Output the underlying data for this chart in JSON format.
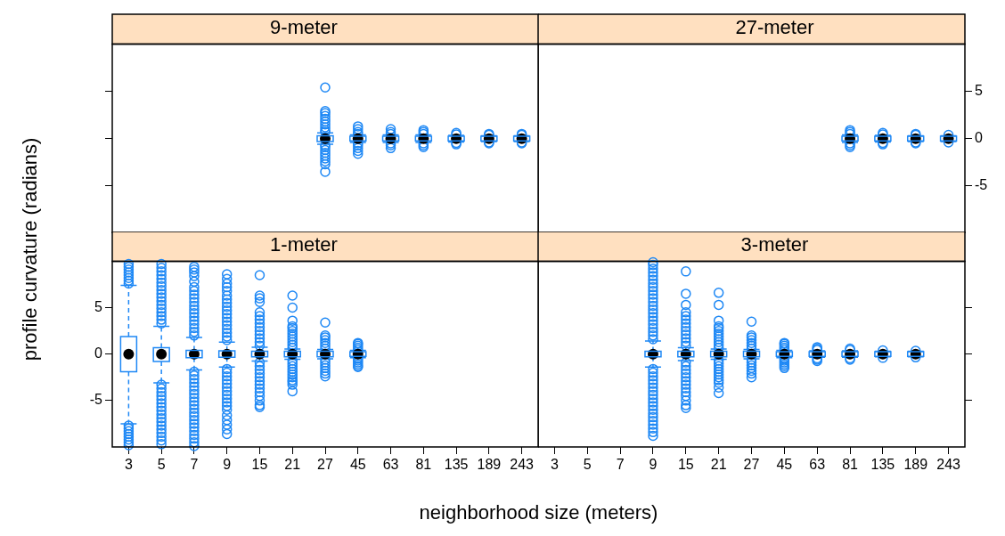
{
  "chart_data": [
    {
      "type": "box",
      "title": "9-meter",
      "categories": [
        "3",
        "5",
        "7",
        "9",
        "15",
        "21",
        "27",
        "45",
        "63",
        "81",
        "135",
        "189",
        "243"
      ],
      "ylim": [
        -10,
        10
      ],
      "yticks": [
        -5,
        0,
        5
      ],
      "grid": false,
      "legend": false,
      "tick_labels": false,
      "series": [
        {
          "color": "#1e88f5",
          "boxes": [
            null,
            null,
            null,
            null,
            null,
            null,
            {
              "low": -0.6,
              "q1": -0.3,
              "median": 0,
              "q3": 0.3,
              "high": 0.6,
              "outliers": [
                0.7,
                0.9,
                1.2,
                1.5,
                1.8,
                2.1,
                2.4,
                2.7,
                2.9,
                5.4,
                -0.7,
                -0.9,
                -1.2,
                -1.5,
                -1.8,
                -2.1,
                -2.4,
                -2.7,
                -3.5
              ]
            },
            {
              "low": -0.4,
              "q1": -0.25,
              "median": 0,
              "q3": 0.25,
              "high": 0.4,
              "outliers": [
                0.5,
                0.7,
                1.0,
                1.3,
                -0.5,
                -0.7,
                -1.0,
                -1.3,
                -1.6
              ]
            },
            {
              "low": -0.4,
              "q1": -0.25,
              "median": 0,
              "q3": 0.25,
              "high": 0.4,
              "outliers": [
                0.5,
                0.7,
                1.0,
                -0.5,
                -0.7,
                -1.0
              ]
            },
            {
              "low": -0.4,
              "q1": -0.25,
              "median": 0,
              "q3": 0.25,
              "high": 0.4,
              "outliers": [
                0.5,
                0.7,
                0.9,
                -0.5,
                -0.7,
                -0.9
              ]
            },
            {
              "low": -0.35,
              "q1": -0.25,
              "median": 0,
              "q3": 0.25,
              "high": 0.35,
              "outliers": [
                0.45,
                0.6,
                -0.45,
                -0.6
              ]
            },
            {
              "low": -0.3,
              "q1": -0.25,
              "median": 0,
              "q3": 0.25,
              "high": 0.3,
              "outliers": [
                0.4,
                0.5,
                -0.4,
                -0.5
              ]
            },
            {
              "low": -0.3,
              "q1": -0.25,
              "median": 0,
              "q3": 0.25,
              "high": 0.3,
              "outliers": [
                0.4,
                0.5,
                -0.4,
                -0.5
              ]
            }
          ]
        }
      ]
    },
    {
      "type": "box",
      "title": "27-meter",
      "categories": [
        "3",
        "5",
        "7",
        "9",
        "15",
        "21",
        "27",
        "45",
        "63",
        "81",
        "135",
        "189",
        "243"
      ],
      "ylim": [
        -10,
        10
      ],
      "yticks": [
        -5,
        0,
        5
      ],
      "grid": false,
      "legend": false,
      "tick_labels": "y",
      "series": [
        {
          "color": "#1e88f5",
          "boxes": [
            null,
            null,
            null,
            null,
            null,
            null,
            null,
            null,
            null,
            {
              "low": -0.4,
              "q1": -0.25,
              "median": 0,
              "q3": 0.25,
              "high": 0.4,
              "outliers": [
                0.5,
                0.7,
                0.9,
                -0.5,
                -0.7,
                -0.9
              ]
            },
            {
              "low": -0.35,
              "q1": -0.25,
              "median": 0,
              "q3": 0.25,
              "high": 0.35,
              "outliers": [
                0.45,
                0.6,
                -0.45,
                -0.6
              ]
            },
            {
              "low": -0.3,
              "q1": -0.25,
              "median": 0,
              "q3": 0.25,
              "high": 0.3,
              "outliers": [
                0.4,
                0.5,
                -0.4,
                -0.5
              ]
            },
            {
              "low": -0.3,
              "q1": -0.25,
              "median": 0,
              "q3": 0.25,
              "high": 0.3,
              "outliers": [
                0.4,
                -0.4
              ]
            }
          ]
        }
      ]
    },
    {
      "type": "box",
      "title": "1-meter",
      "xlabel": "neighborhood size (meters)",
      "ylabel": "profile curvature (radians)",
      "categories": [
        "3",
        "5",
        "7",
        "9",
        "15",
        "21",
        "27",
        "45",
        "63",
        "81",
        "135",
        "189",
        "243"
      ],
      "ylim": [
        -10,
        10
      ],
      "yticks": [
        -5,
        0,
        5
      ],
      "grid": false,
      "legend": false,
      "series": [
        {
          "color": "#1e88f5",
          "boxes": [
            {
              "low": -7.5,
              "q1": -1.9,
              "median": 0,
              "q3": 1.9,
              "high": 7.4,
              "outliers": [
                7.6,
                7.9,
                8.2,
                8.5,
                8.8,
                9.1,
                9.4,
                9.7,
                -7.7,
                -8.0,
                -8.3,
                -8.6,
                -8.9,
                -9.2,
                -9.5,
                -9.8
              ]
            },
            {
              "low": -3.1,
              "q1": -0.8,
              "median": 0,
              "q3": 0.7,
              "high": 3.0,
              "outliers": [
                3.3,
                3.7,
                4.1,
                4.5,
                4.9,
                5.3,
                5.7,
                6.1,
                6.5,
                6.9,
                7.3,
                7.7,
                8.1,
                8.5,
                8.9,
                9.3,
                9.7,
                -3.3,
                -3.7,
                -4.1,
                -4.5,
                -4.9,
                -5.3,
                -5.7,
                -6.1,
                -6.5,
                -6.9,
                -7.3,
                -7.7,
                -8.1,
                -8.5,
                -8.9,
                -9.3,
                -9.7
              ]
            },
            {
              "low": -1.7,
              "q1": -0.4,
              "median": 0,
              "q3": 0.4,
              "high": 1.8,
              "outliers": [
                2.0,
                2.4,
                2.8,
                3.2,
                3.6,
                4.0,
                4.4,
                4.8,
                5.2,
                5.6,
                6.0,
                6.4,
                6.8,
                7.2,
                7.8,
                8.4,
                8.8,
                9.1,
                9.4,
                -1.9,
                -2.3,
                -2.7,
                -3.1,
                -3.5,
                -3.9,
                -4.3,
                -4.7,
                -5.1,
                -5.5,
                -5.9,
                -6.3,
                -6.7,
                -7.1,
                -7.5,
                -7.9,
                -8.3,
                -8.7,
                -9.1,
                -9.5,
                -9.9
              ]
            },
            {
              "low": -1.4,
              "q1": -0.35,
              "median": 0,
              "q3": 0.35,
              "high": 1.3,
              "outliers": [
                1.5,
                1.9,
                2.3,
                2.7,
                3.1,
                3.5,
                3.9,
                4.3,
                4.7,
                5.1,
                5.5,
                5.9,
                6.3,
                6.8,
                7.2,
                7.6,
                8.1,
                8.6,
                -1.6,
                -2.0,
                -2.4,
                -2.8,
                -3.2,
                -3.6,
                -4.0,
                -4.4,
                -4.8,
                -5.2,
                -5.6,
                -6.0,
                -6.6,
                -7.1,
                -7.6,
                -8.1,
                -8.6
              ]
            },
            {
              "low": -0.75,
              "q1": -0.3,
              "median": 0,
              "q3": 0.3,
              "high": 0.75,
              "outliers": [
                0.9,
                1.3,
                1.7,
                2.1,
                2.5,
                2.9,
                3.3,
                3.7,
                4.1,
                4.5,
                5.6,
                6.0,
                6.3,
                8.5,
                -0.9,
                -1.3,
                -1.7,
                -2.1,
                -2.5,
                -2.9,
                -3.3,
                -3.7,
                -4.1,
                -4.5,
                -5.0,
                -5.5,
                -5.7
              ]
            },
            {
              "low": -0.55,
              "q1": -0.3,
              "median": 0,
              "q3": 0.3,
              "high": 0.55,
              "outliers": [
                0.7,
                1.0,
                1.3,
                1.6,
                1.9,
                2.2,
                2.5,
                2.8,
                3.0,
                3.6,
                5.0,
                6.3,
                -0.7,
                -1.0,
                -1.3,
                -1.6,
                -1.9,
                -2.2,
                -2.5,
                -2.8,
                -3.0,
                -3.3,
                -4.0
              ]
            },
            {
              "low": -0.5,
              "q1": -0.3,
              "median": 0,
              "q3": 0.3,
              "high": 0.5,
              "outliers": [
                0.6,
                0.9,
                1.2,
                1.5,
                1.8,
                2.0,
                3.4,
                -0.6,
                -0.9,
                -1.2,
                -1.5,
                -1.8,
                -2.1,
                -2.4
              ]
            },
            {
              "low": -0.4,
              "q1": -0.25,
              "median": 0,
              "q3": 0.25,
              "high": 0.4,
              "outliers": [
                0.5,
                0.7,
                0.9,
                1.1,
                1.2,
                -0.5,
                -0.7,
                -0.9,
                -1.1,
                -1.3,
                -1.4
              ]
            },
            null,
            null,
            null,
            null,
            null
          ]
        }
      ]
    },
    {
      "type": "box",
      "title": "3-meter",
      "categories": [
        "3",
        "5",
        "7",
        "9",
        "15",
        "21",
        "27",
        "45",
        "63",
        "81",
        "135",
        "189",
        "243"
      ],
      "ylim": [
        -10,
        10
      ],
      "yticks": [
        -5,
        0,
        5
      ],
      "grid": false,
      "legend": false,
      "tick_labels": "x",
      "series": [
        {
          "color": "#1e88f5",
          "boxes": [
            null,
            null,
            null,
            {
              "low": -1.4,
              "q1": -0.3,
              "median": 0,
              "q3": 0.3,
              "high": 1.4,
              "outliers": [
                1.6,
                2.0,
                2.4,
                2.8,
                3.2,
                3.6,
                4.0,
                4.4,
                4.8,
                5.2,
                5.6,
                6.0,
                6.4,
                6.8,
                7.2,
                7.6,
                8.0,
                8.4,
                8.8,
                9.2,
                9.6,
                9.9,
                -1.6,
                -2.0,
                -2.4,
                -2.8,
                -3.2,
                -3.6,
                -4.0,
                -4.4,
                -4.8,
                -5.2,
                -5.6,
                -6.0,
                -6.4,
                -6.8,
                -7.2,
                -7.6,
                -8.0,
                -8.4,
                -8.8
              ]
            },
            {
              "low": -0.7,
              "q1": -0.3,
              "median": 0,
              "q3": 0.3,
              "high": 0.7,
              "outliers": [
                0.9,
                1.3,
                1.7,
                2.1,
                2.5,
                2.9,
                3.3,
                3.7,
                4.1,
                4.5,
                5.3,
                6.5,
                8.9,
                -0.9,
                -1.3,
                -1.7,
                -2.1,
                -2.5,
                -2.9,
                -3.3,
                -3.7,
                -4.1,
                -4.5,
                -5.0,
                -5.5,
                -5.8
              ]
            },
            {
              "low": -0.55,
              "q1": -0.3,
              "median": 0,
              "q3": 0.3,
              "high": 0.55,
              "outliers": [
                0.7,
                1.0,
                1.3,
                1.6,
                1.9,
                2.2,
                2.5,
                2.8,
                3.0,
                3.6,
                5.3,
                6.6,
                -0.7,
                -1.0,
                -1.3,
                -1.6,
                -1.9,
                -2.2,
                -2.5,
                -2.8,
                -3.1,
                -3.6,
                -4.2
              ]
            },
            {
              "low": -0.5,
              "q1": -0.3,
              "median": 0,
              "q3": 0.3,
              "high": 0.5,
              "outliers": [
                0.6,
                0.9,
                1.2,
                1.5,
                1.8,
                2.0,
                3.5,
                -0.6,
                -0.9,
                -1.2,
                -1.5,
                -1.8,
                -2.1,
                -2.5
              ]
            },
            {
              "low": -0.4,
              "q1": -0.25,
              "median": 0,
              "q3": 0.25,
              "high": 0.4,
              "outliers": [
                0.5,
                0.7,
                0.9,
                1.1,
                1.2,
                -0.5,
                -0.7,
                -0.9,
                -1.1,
                -1.3,
                -1.5
              ]
            },
            {
              "low": -0.35,
              "q1": -0.25,
              "median": 0,
              "q3": 0.25,
              "high": 0.35,
              "outliers": [
                0.45,
                0.6,
                0.75,
                -0.45,
                -0.6,
                -0.75
              ]
            },
            {
              "low": -0.35,
              "q1": -0.25,
              "median": 0,
              "q3": 0.25,
              "high": 0.35,
              "outliers": [
                0.45,
                0.6,
                -0.45,
                -0.6
              ]
            },
            {
              "low": -0.3,
              "q1": -0.25,
              "median": 0,
              "q3": 0.25,
              "high": 0.3,
              "outliers": [
                0.4,
                -0.4
              ]
            },
            {
              "low": -0.3,
              "q1": -0.25,
              "median": 0,
              "q3": 0.25,
              "high": 0.3,
              "outliers": [
                0.35,
                -0.35
              ]
            },
            null
          ]
        }
      ]
    }
  ]
}
